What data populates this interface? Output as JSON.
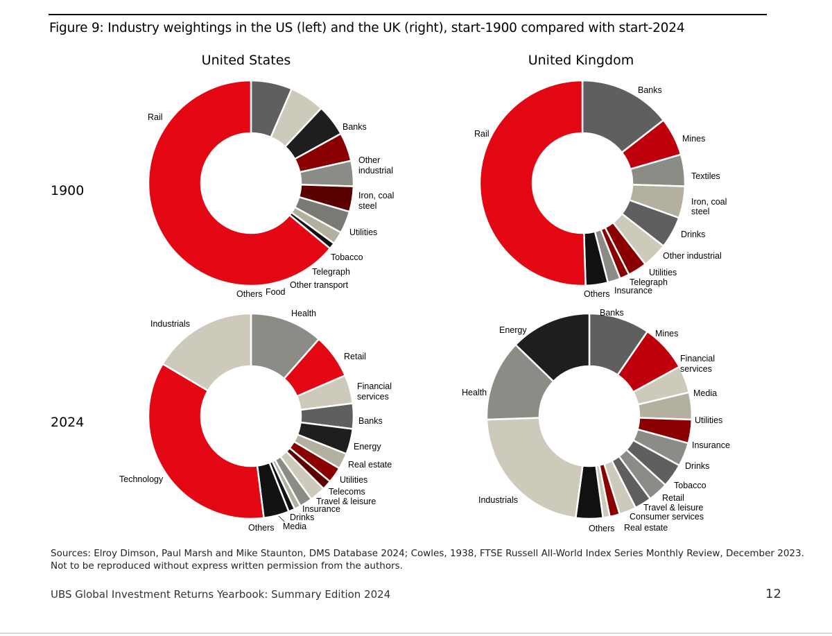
{
  "figure": {
    "title": "Figure 9: Industry weightings in the US (left) and the UK (right), start-1900 compared with start-2024",
    "columns": [
      "United States",
      "United Kingdom"
    ],
    "rows": [
      "1900",
      "2024"
    ]
  },
  "colors": {
    "red": "#e30613",
    "dark_red": "#8a0000",
    "crimson": "#bd000c",
    "maroon": "#5a0000",
    "dark_grey": "#5f5f5f",
    "mid_grey": "#8c8c87",
    "light_grey": "#b4b0a0",
    "pale_grey": "#cdc9bb",
    "black": "#1e1e1e",
    "very_dark": "#111111"
  },
  "chart_data": [
    {
      "id": "us-1900",
      "type": "pie",
      "donut": true,
      "region": "United States",
      "year": "1900",
      "slices": [
        {
          "label": "Banks",
          "value": 6.5,
          "color": "#5f5f5f"
        },
        {
          "label": "Other industrial",
          "value": 5.5,
          "color": "#cdc9bb"
        },
        {
          "label": "Iron, coal steel",
          "value": 5.0,
          "color": "#1e1e1e"
        },
        {
          "label": "Utilities",
          "value": 4.5,
          "color": "#8a0000"
        },
        {
          "label": "Tobacco",
          "value": 4.0,
          "color": "#8c8c87"
        },
        {
          "label": "Telegraph",
          "value": 4.0,
          "color": "#5a0000"
        },
        {
          "label": "Other transport",
          "value": 3.5,
          "color": "#7a7a75"
        },
        {
          "label": "Food",
          "value": 2.0,
          "color": "#b4b0a0"
        },
        {
          "label": "Others",
          "value": 1.0,
          "color": "#111111"
        },
        {
          "label": "Rail",
          "value": 64.0,
          "color": "#e30613"
        }
      ]
    },
    {
      "id": "uk-1900",
      "type": "pie",
      "donut": true,
      "region": "United Kingdom",
      "year": "1900",
      "slices": [
        {
          "label": "Banks",
          "value": 14.5,
          "color": "#5f5f5f"
        },
        {
          "label": "Mines",
          "value": 6.0,
          "color": "#bd000c"
        },
        {
          "label": "Textiles",
          "value": 5.0,
          "color": "#8c8c87"
        },
        {
          "label": "Iron, coal steel",
          "value": 5.0,
          "color": "#b4b0a0"
        },
        {
          "label": "Drinks",
          "value": 5.0,
          "color": "#5f5f5f"
        },
        {
          "label": "Other industrial",
          "value": 4.0,
          "color": "#cdc9bb"
        },
        {
          "label": "Utilities",
          "value": 3.0,
          "color": "#8a0000"
        },
        {
          "label": "Telegraph",
          "value": 1.5,
          "color": "#8a0000"
        },
        {
          "label": "Insurance",
          "value": 2.0,
          "color": "#8c8c87"
        },
        {
          "label": "Others",
          "value": 3.5,
          "color": "#111111"
        },
        {
          "label": "Rail",
          "value": 50.5,
          "color": "#e30613"
        }
      ]
    },
    {
      "id": "us-2024",
      "type": "pie",
      "donut": true,
      "region": "United States",
      "year": "2024",
      "slices": [
        {
          "label": "Health",
          "value": 11.5,
          "color": "#8c8c87"
        },
        {
          "label": "Retail",
          "value": 7.0,
          "color": "#e30613"
        },
        {
          "label": "Financial services",
          "value": 4.5,
          "color": "#cdc9bb"
        },
        {
          "label": "Banks",
          "value": 4.0,
          "color": "#5f5f5f"
        },
        {
          "label": "Energy",
          "value": 4.0,
          "color": "#1e1e1e"
        },
        {
          "label": "Real estate",
          "value": 2.5,
          "color": "#b4b0a0"
        },
        {
          "label": "Utilities",
          "value": 2.5,
          "color": "#8a0000"
        },
        {
          "label": "Telecoms",
          "value": 1.5,
          "color": "#5a0000"
        },
        {
          "label": "Travel & leisure",
          "value": 2.5,
          "color": "#cdc9bb"
        },
        {
          "label": "Insurance",
          "value": 2.0,
          "color": "#8c8c87"
        },
        {
          "label": "Drinks",
          "value": 1.0,
          "color": "#b4b0a0"
        },
        {
          "label": "Media",
          "value": 1.0,
          "color": "#111111"
        },
        {
          "label": "Others",
          "value": 4.0,
          "color": "#111111"
        },
        {
          "label": "Technology",
          "value": 35.5,
          "color": "#e30613"
        },
        {
          "label": "Industrials",
          "value": 16.5,
          "color": "#cdc9bb"
        }
      ]
    },
    {
      "id": "uk-2024",
      "type": "pie",
      "donut": true,
      "region": "United Kingdom",
      "year": "2024",
      "slices": [
        {
          "label": "Banks",
          "value": 9.0,
          "color": "#5f5f5f"
        },
        {
          "label": "Mines",
          "value": 7.0,
          "color": "#bd000c"
        },
        {
          "label": "Financial services",
          "value": 4.0,
          "color": "#cdc9bb"
        },
        {
          "label": "Media",
          "value": 4.0,
          "color": "#b4b0a0"
        },
        {
          "label": "Utilities",
          "value": 3.5,
          "color": "#8a0000"
        },
        {
          "label": "Insurance",
          "value": 3.5,
          "color": "#8c8c87"
        },
        {
          "label": "Drinks",
          "value": 3.5,
          "color": "#5f5f5f"
        },
        {
          "label": "Tobacco",
          "value": 3.0,
          "color": "#8c8c87"
        },
        {
          "label": "Retail",
          "value": 2.5,
          "color": "#5f5f5f"
        },
        {
          "label": "Travel & leisure",
          "value": 2.5,
          "color": "#cdc9bb"
        },
        {
          "label": "Consumer services",
          "value": 1.5,
          "color": "#8a0000"
        },
        {
          "label": "Real estate",
          "value": 1.0,
          "color": "#cdc9bb"
        },
        {
          "label": "Others",
          "value": 4.0,
          "color": "#111111"
        },
        {
          "label": "Industrials",
          "value": 21.0,
          "color": "#cdc9bb"
        },
        {
          "label": "Health",
          "value": 12.0,
          "color": "#8c8c87"
        },
        {
          "label": "Energy",
          "value": 12.0,
          "color": "#1e1e1e"
        }
      ]
    }
  ],
  "labels": {
    "us-1900": [
      "Rail",
      "Banks",
      "Other",
      "industrial",
      "Iron, coal",
      "steel",
      "Utilities",
      "Tobacco",
      "Telegraph",
      "Other transport",
      "Food",
      "Others"
    ],
    "uk-1900": [
      "Banks",
      "Rail",
      "Mines",
      "Textiles",
      "Iron, coal",
      "steel",
      "Drinks",
      "Other industrial",
      "Utilities",
      "Telegraph",
      "Insurance",
      "Others"
    ],
    "us-2024": [
      "Health",
      "Industrials",
      "Retail",
      "Financial",
      "services",
      "Banks",
      "Energy",
      "Real estate",
      "Utilities",
      "Telecoms",
      "Travel & leisure",
      "Insurance",
      "Drinks",
      "Technology",
      "Others",
      "Media"
    ],
    "uk-2024": [
      "Banks",
      "Energy",
      "Mines",
      "Financial",
      "services",
      "Media",
      "Health",
      "Utilities",
      "Insurance",
      "Drinks",
      "Tobacco",
      "Retail",
      "Industrials",
      "Travel & leisure",
      "Consumer services",
      "Others",
      "Real estate"
    ]
  },
  "sources": {
    "line1": "Sources: Elroy Dimson, Paul Marsh and Mike Staunton, DMS Database 2024; Cowles, 1938, FTSE Russell All-World Index Series Monthly Review, December 2023.",
    "line2": "Not to be reproduced without express written permission from the authors."
  },
  "footer": {
    "title": "UBS Global Investment Returns Yearbook: Summary Edition 2024",
    "page": "12"
  }
}
